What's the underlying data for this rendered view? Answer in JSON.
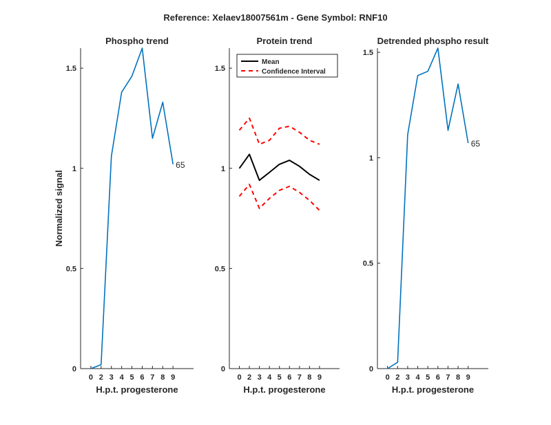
{
  "figure": {
    "suptitle": "Reference:  Xelaev18007561m - Gene Symbol:  RNF10"
  },
  "chart_data": [
    {
      "type": "line",
      "title": "Phospho trend",
      "xlabel": "H.p.t. progesterone",
      "ylabel": "Normalized signal",
      "x_ticks": [
        "0",
        "2",
        "3",
        "4",
        "5",
        "6",
        "7",
        "8",
        "9"
      ],
      "y_ticks": [
        "0",
        "0.5",
        "1",
        "1.5"
      ],
      "ylim": [
        0,
        1.6
      ],
      "grid": false,
      "series": [
        {
          "color": "#0072bd",
          "style": "solid",
          "values": [
            0.0,
            0.02,
            1.06,
            1.38,
            1.46,
            1.6,
            1.15,
            1.33,
            1.02
          ]
        }
      ],
      "annotation": {
        "text": "65",
        "at_index": 8
      }
    },
    {
      "type": "line",
      "title": "Protein trend",
      "xlabel": "H.p.t. progesterone",
      "ylabel": "",
      "x_ticks": [
        "0",
        "2",
        "3",
        "4",
        "5",
        "6",
        "7",
        "8",
        "9"
      ],
      "y_ticks": [
        "0",
        "0.5",
        "1",
        "1.5"
      ],
      "ylim": [
        0,
        1.6
      ],
      "grid": false,
      "legend": {
        "placement": "top-left",
        "entries": [
          "Mean",
          "Confidence Interval"
        ]
      },
      "series": [
        {
          "name": "Mean",
          "color": "#000000",
          "style": "solid",
          "values": [
            1.0,
            1.07,
            0.94,
            0.98,
            1.02,
            1.04,
            1.01,
            0.97,
            0.94
          ]
        },
        {
          "name": "Confidence Interval",
          "color": "#ff0000",
          "style": "dashed",
          "values": [
            1.19,
            1.25,
            1.12,
            1.14,
            1.2,
            1.21,
            1.18,
            1.14,
            1.12
          ]
        },
        {
          "name": "",
          "color": "#ff0000",
          "style": "dashed",
          "values": [
            0.86,
            0.92,
            0.8,
            0.85,
            0.89,
            0.91,
            0.88,
            0.84,
            0.79
          ]
        }
      ]
    },
    {
      "type": "line",
      "title": "Detrended phospho result",
      "xlabel": "H.p.t. progesterone",
      "ylabel": "",
      "x_ticks": [
        "0",
        "2",
        "3",
        "4",
        "5",
        "6",
        "7",
        "8",
        "9"
      ],
      "y_ticks": [
        "0",
        "0.5",
        "1",
        "1.5"
      ],
      "ylim": [
        0,
        1.52
      ],
      "grid": false,
      "series": [
        {
          "color": "#0072bd",
          "style": "solid",
          "values": [
            0.0,
            0.03,
            1.11,
            1.39,
            1.41,
            1.52,
            1.13,
            1.35,
            1.07
          ]
        }
      ],
      "annotation": {
        "text": "65",
        "at_index": 8
      }
    }
  ]
}
